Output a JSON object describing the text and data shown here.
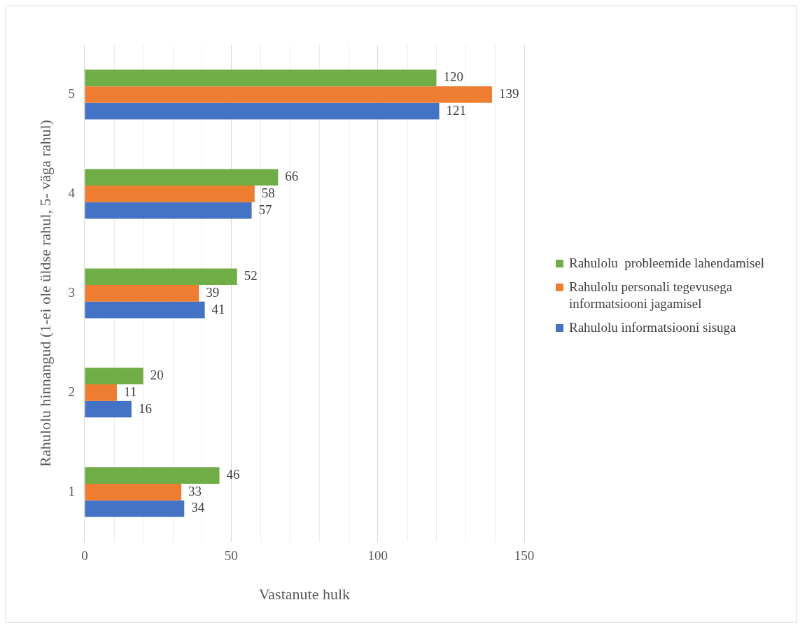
{
  "chart_data": {
    "type": "bar",
    "orientation": "horizontal",
    "categories": [
      "5",
      "4",
      "3",
      "2",
      "1"
    ],
    "series": [
      {
        "name": "Rahulolu  probleemide lahendamisel",
        "color": "#70ad47",
        "values": [
          120,
          66,
          52,
          20,
          46
        ]
      },
      {
        "name": "Rahulolu personali tegevusega informatsiooni jagamisel",
        "color": "#ed7d31",
        "values": [
          139,
          58,
          39,
          11,
          33
        ]
      },
      {
        "name": "Rahulolu informatsiooni sisuga",
        "color": "#4472c4",
        "values": [
          121,
          57,
          41,
          16,
          34
        ]
      }
    ],
    "xlim": [
      0,
      150
    ],
    "xticks": [
      0,
      50,
      100,
      150
    ],
    "xlabel": "Vastanute hulk",
    "ylabel": "Rahulolu hinnangud (1-ei ole üldse rahul, 5- väga rahul)",
    "grid": "x",
    "legend": "right",
    "data_labels": true
  }
}
